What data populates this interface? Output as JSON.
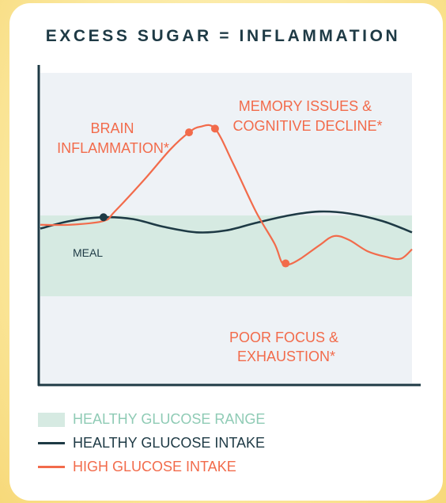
{
  "title": "EXCESS SUGAR = INFLAMMATION",
  "colors": {
    "background": "#fbe9a0",
    "plot_band": "#eef2f6",
    "healthy_range": "#d6eae2",
    "healthy_line": "#1e3a45",
    "high_line": "#f26b4b",
    "axis": "#1e3a45"
  },
  "chart_data": {
    "type": "line",
    "title": "EXCESS SUGAR = INFLAMMATION",
    "xlabel": "",
    "ylabel": "",
    "grid": false,
    "shaded_band": {
      "name": "HEALTHY GLUCOSE RANGE"
    },
    "series": [
      {
        "name": "HEALTHY GLUCOSE INTAKE",
        "points": [
          [
            0,
            0.46
          ],
          [
            0.08,
            0.5
          ],
          [
            0.17,
            0.52
          ],
          [
            0.25,
            0.51
          ],
          [
            0.33,
            0.47
          ],
          [
            0.42,
            0.44
          ],
          [
            0.5,
            0.45
          ],
          [
            0.58,
            0.49
          ],
          [
            0.67,
            0.53
          ],
          [
            0.75,
            0.55
          ],
          [
            0.83,
            0.54
          ],
          [
            0.92,
            0.5
          ],
          [
            1,
            0.44
          ]
        ]
      },
      {
        "name": "HIGH GLUCOSE INTAKE",
        "points": [
          [
            0,
            0.48
          ],
          [
            0.08,
            0.48
          ],
          [
            0.17,
            0.5
          ],
          [
            0.2,
            0.55
          ],
          [
            0.28,
            0.72
          ],
          [
            0.35,
            0.88
          ],
          [
            0.4,
            0.97
          ],
          [
            0.43,
            1.0
          ],
          [
            0.47,
            0.99
          ],
          [
            0.52,
            0.8
          ],
          [
            0.58,
            0.55
          ],
          [
            0.63,
            0.38
          ],
          [
            0.65,
            0.28
          ],
          [
            0.67,
            0.27
          ],
          [
            0.7,
            0.3
          ],
          [
            0.75,
            0.37
          ],
          [
            0.79,
            0.42
          ],
          [
            0.83,
            0.4
          ],
          [
            0.88,
            0.34
          ],
          [
            0.93,
            0.31
          ],
          [
            0.97,
            0.3
          ],
          [
            1,
            0.35
          ]
        ]
      }
    ],
    "annotations": [
      {
        "id": "meal",
        "text": [
          "MEAL"
        ],
        "series": 0,
        "x": 0.17
      },
      {
        "id": "brain",
        "text": [
          "BRAIN",
          "INFLAMMATION*"
        ],
        "series": 1,
        "x": 0.4
      },
      {
        "id": "memory",
        "text": [
          "MEMORY ISSUES &",
          "COGNITIVE DECLINE*"
        ],
        "series": 1,
        "x": 0.47
      },
      {
        "id": "focus",
        "text": [
          "POOR FOCUS &",
          "EXHAUSTION*"
        ],
        "series": 1,
        "x": 0.66
      }
    ]
  },
  "legend": [
    {
      "label": "HEALTHY GLUCOSE RANGE",
      "kind": "swatch",
      "color": "#d6eae2",
      "text_color": "#8fcbb5"
    },
    {
      "label": "HEALTHY GLUCOSE INTAKE",
      "kind": "line",
      "color": "#1e3a45",
      "text_color": "#1e3a45"
    },
    {
      "label": "HIGH GLUCOSE INTAKE",
      "kind": "line",
      "color": "#f26b4b",
      "text_color": "#f26b4b"
    }
  ]
}
